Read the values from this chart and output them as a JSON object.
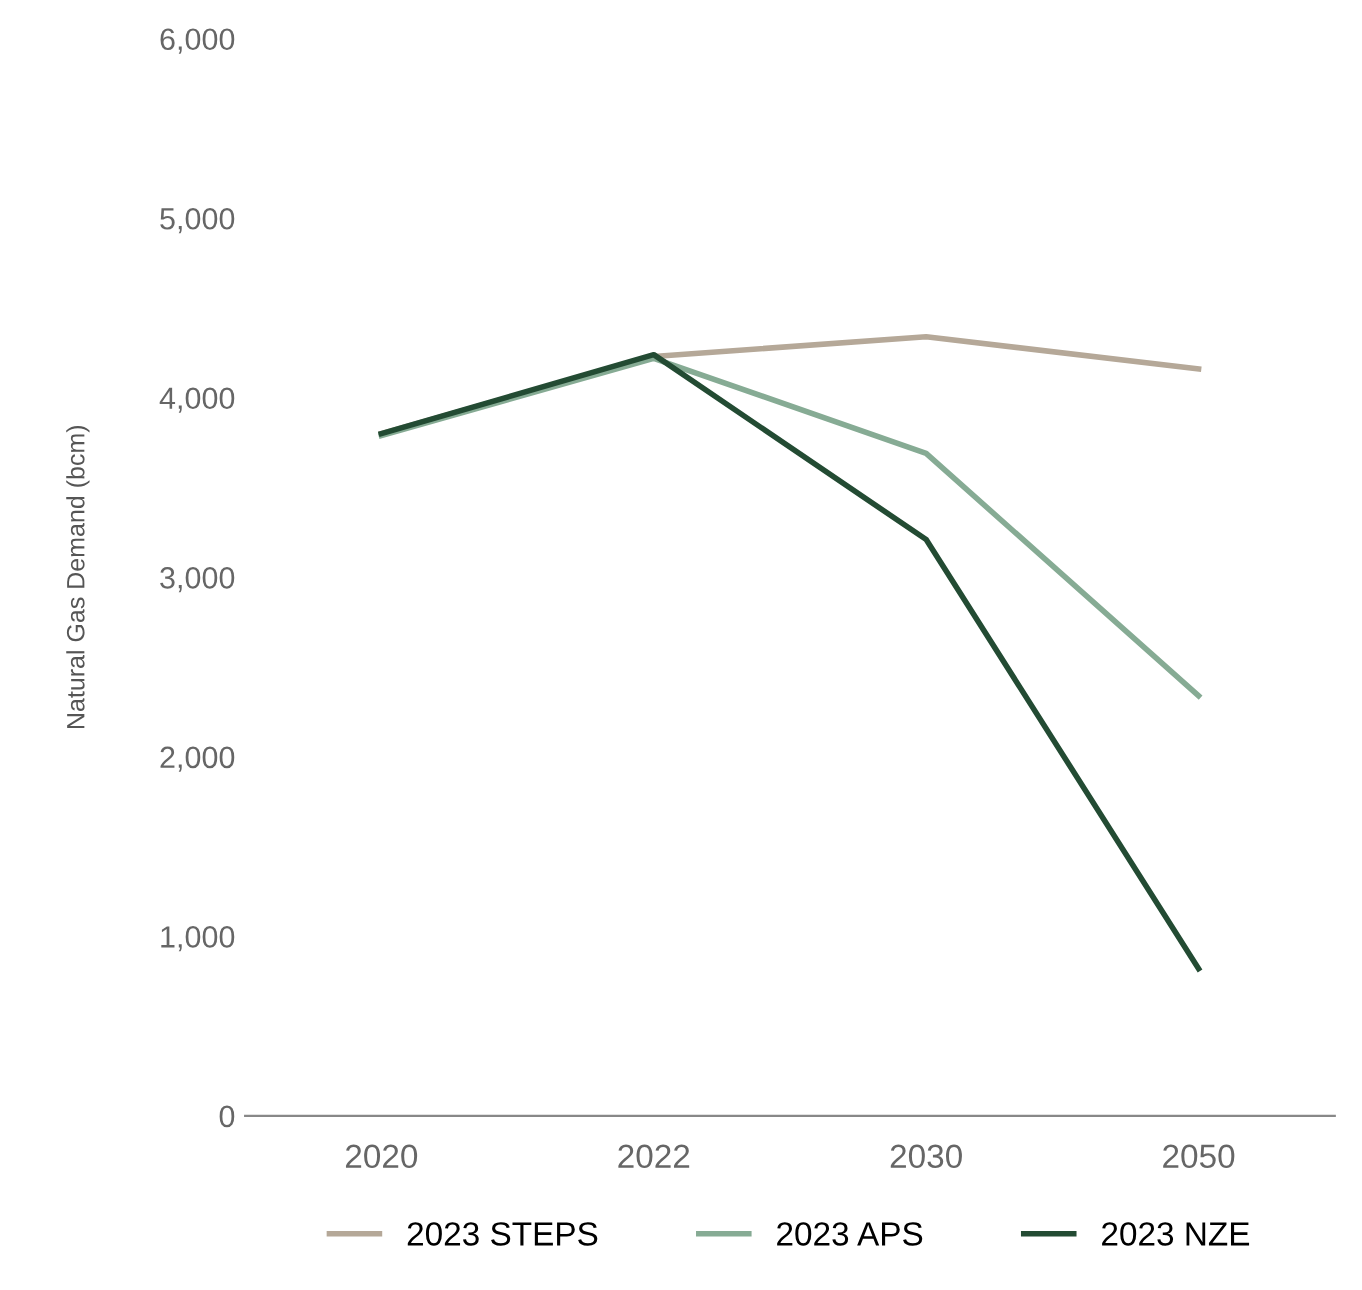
{
  "chart_data": {
    "type": "line",
    "ylabel": "Natural Gas Demand (bcm)",
    "categories": [
      "2020",
      "2022",
      "2030",
      "2050"
    ],
    "series": [
      {
        "name": "2023 STEPS",
        "color": "#b5a898",
        "values": [
          3800,
          4230,
          4340,
          4160
        ]
      },
      {
        "name": "2023 APS",
        "color": "#86ab94",
        "values": [
          3790,
          4220,
          3690,
          2340
        ]
      },
      {
        "name": "2023 NZE",
        "color": "#234b33",
        "values": [
          3800,
          4240,
          3210,
          820
        ]
      }
    ],
    "ylim": [
      0,
      6000
    ],
    "yticks": [
      {
        "value": 0,
        "label": "0"
      },
      {
        "value": 1000,
        "label": "1,000"
      },
      {
        "value": 2000,
        "label": "2,000"
      },
      {
        "value": 3000,
        "label": "3,000"
      },
      {
        "value": 4000,
        "label": "4,000"
      },
      {
        "value": 5000,
        "label": "5,000"
      },
      {
        "value": 6000,
        "label": "6,000"
      }
    ],
    "grid": false,
    "legend": "bottom",
    "marker": "none",
    "line_style": "solid"
  }
}
